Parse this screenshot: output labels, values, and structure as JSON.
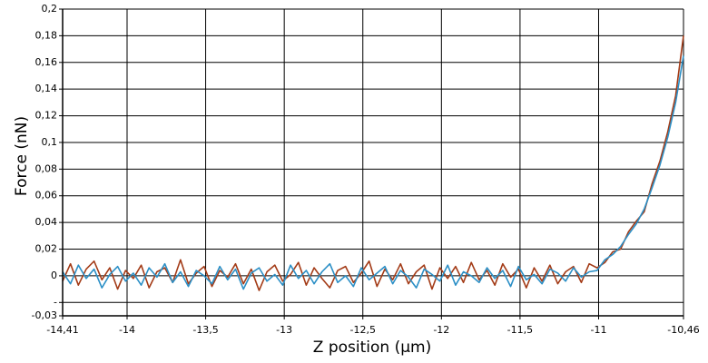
{
  "chart_data": {
    "type": "line",
    "xlabel": "Z position (µm)",
    "ylabel": "Force (nN)",
    "x": [
      -14.41,
      -14.36,
      -14.31,
      -14.26,
      -14.21,
      -14.16,
      -14.11,
      -14.06,
      -14.01,
      -13.96,
      -13.91,
      -13.86,
      -13.81,
      -13.76,
      -13.71,
      -13.66,
      -13.61,
      -13.56,
      -13.51,
      -13.46,
      -13.41,
      -13.36,
      -13.31,
      -13.26,
      -13.21,
      -13.16,
      -13.11,
      -13.06,
      -13.01,
      -12.96,
      -12.91,
      -12.86,
      -12.81,
      -12.76,
      -12.71,
      -12.66,
      -12.61,
      -12.56,
      -12.51,
      -12.46,
      -12.41,
      -12.36,
      -12.31,
      -12.26,
      -12.21,
      -12.16,
      -12.11,
      -12.06,
      -12.01,
      -11.96,
      -11.91,
      -11.86,
      -11.81,
      -11.76,
      -11.71,
      -11.66,
      -11.61,
      -11.56,
      -11.51,
      -11.46,
      -11.41,
      -11.36,
      -11.31,
      -11.26,
      -11.21,
      -11.16,
      -11.11,
      -11.06,
      -11.01,
      -10.96,
      -10.91,
      -10.86,
      -10.81,
      -10.76,
      -10.71,
      -10.66,
      -10.61,
      -10.56,
      -10.51,
      -10.46
    ],
    "series": [
      {
        "color": "#a33b17",
        "values": [
          -0.004,
          0.009,
          -0.007,
          0.005,
          0.011,
          -0.003,
          0.006,
          -0.01,
          0.004,
          -0.002,
          0.008,
          -0.009,
          0.003,
          0.006,
          -0.005,
          0.012,
          -0.006,
          0.002,
          0.007,
          -0.008,
          0.004,
          -0.001,
          0.009,
          -0.006,
          0.005,
          -0.011,
          0.003,
          0.008,
          -0.004,
          0.001,
          0.01,
          -0.007,
          0.006,
          -0.002,
          -0.009,
          0.004,
          0.007,
          -0.005,
          0.002,
          0.011,
          -0.008,
          0.005,
          -0.003,
          0.009,
          -0.006,
          0.003,
          0.008,
          -0.01,
          0.006,
          -0.002,
          0.007,
          -0.005,
          0.01,
          -0.003,
          0.004,
          -0.007,
          0.009,
          -0.001,
          0.005,
          -0.009,
          0.006,
          -0.004,
          0.008,
          -0.006,
          0.003,
          0.007,
          -0.005,
          0.009,
          0.006,
          0.01,
          0.018,
          0.02,
          0.033,
          0.041,
          0.048,
          0.069,
          0.086,
          0.108,
          0.135,
          0.18
        ]
      },
      {
        "color": "#2b8fc6",
        "values": [
          0.003,
          -0.006,
          0.008,
          -0.002,
          0.005,
          -0.009,
          0.001,
          0.007,
          -0.004,
          0.002,
          -0.007,
          0.006,
          -0.001,
          0.009,
          -0.005,
          0.003,
          -0.008,
          0.004,
          0,
          -0.006,
          0.007,
          -0.003,
          0.005,
          -0.01,
          0.002,
          0.006,
          -0.004,
          0.001,
          -0.007,
          0.008,
          -0.002,
          0.004,
          -0.006,
          0.003,
          0.009,
          -0.005,
          0,
          -0.008,
          0.006,
          -0.003,
          0.002,
          0.007,
          -0.006,
          0.004,
          -0.001,
          -0.009,
          0.005,
          0.001,
          -0.004,
          0.008,
          -0.007,
          0.003,
          0,
          -0.005,
          0.006,
          -0.002,
          0.004,
          -0.008,
          0.007,
          -0.003,
          0.001,
          -0.006,
          0.005,
          0.002,
          -0.004,
          0.006,
          -0.001,
          0.003,
          0.004,
          0.012,
          0.016,
          0.022,
          0.031,
          0.039,
          0.05,
          0.066,
          0.083,
          0.104,
          0.13,
          0.165
        ]
      }
    ],
    "xlim": [
      -14.41,
      -10.46
    ],
    "xticks": [
      {
        "value": -14.41,
        "label": "-14,41"
      },
      -14,
      {
        "value": -13.5,
        "label": "-13,5"
      },
      -13,
      {
        "value": -12.5,
        "label": "-12,5"
      },
      -12,
      {
        "value": -11.5,
        "label": "-11,5"
      },
      -11,
      {
        "value": -10.46,
        "label": "-10,46"
      }
    ],
    "ylim": [
      -0.03,
      0.2
    ],
    "yticks": [
      {
        "value": 0.2,
        "label": "0,2"
      },
      {
        "value": 0.18,
        "label": "0,18"
      },
      {
        "value": 0.16,
        "label": "0,16"
      },
      {
        "value": 0.14,
        "label": "0,14"
      },
      {
        "value": 0.12,
        "label": "0,12"
      },
      {
        "value": 0.1,
        "label": "0,1"
      },
      {
        "value": 0.08,
        "label": "0,08"
      },
      {
        "value": 0.06,
        "label": "0,06"
      },
      {
        "value": 0.04,
        "label": "0,04"
      },
      {
        "value": 0.02,
        "label": "0,02"
      },
      0,
      {
        "value": -0.02,
        "label": "-"
      },
      {
        "value": -0.03,
        "label": "-0,03"
      }
    ],
    "grid": true
  }
}
